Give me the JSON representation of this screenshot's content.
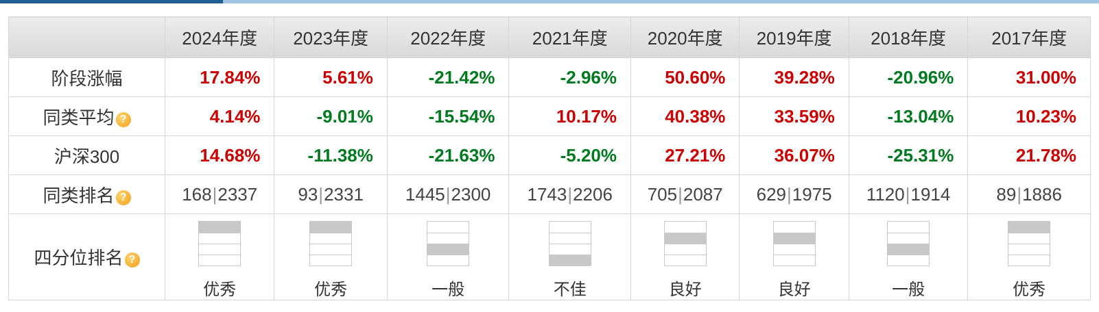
{
  "years": [
    "2024年度",
    "2023年度",
    "2022年度",
    "2021年度",
    "2020年度",
    "2019年度",
    "2018年度",
    "2017年度"
  ],
  "rows": {
    "stage_return": {
      "label": "阶段涨幅",
      "values": [
        "17.84%",
        "5.61%",
        "-21.42%",
        "-2.96%",
        "50.60%",
        "39.28%",
        "-20.96%",
        "31.00%"
      ]
    },
    "peer_average": {
      "label": "同类平均",
      "values": [
        "4.14%",
        "-9.01%",
        "-15.54%",
        "10.17%",
        "40.38%",
        "33.59%",
        "-13.04%",
        "10.23%"
      ]
    },
    "csi300": {
      "label": "沪深300",
      "values": [
        "14.68%",
        "-11.38%",
        "-21.63%",
        "-5.20%",
        "27.21%",
        "36.07%",
        "-25.31%",
        "21.78%"
      ]
    },
    "peer_rank": {
      "label": "同类排名",
      "ranks": [
        [
          "168",
          "2337"
        ],
        [
          "93",
          "2331"
        ],
        [
          "1445",
          "2300"
        ],
        [
          "1743",
          "2206"
        ],
        [
          "705",
          "2087"
        ],
        [
          "629",
          "1975"
        ],
        [
          "1120",
          "1914"
        ],
        [
          "89",
          "1886"
        ]
      ]
    },
    "quartile": {
      "label": "四分位排名",
      "items": [
        {
          "label": "优秀",
          "level": 1
        },
        {
          "label": "优秀",
          "level": 1
        },
        {
          "label": "一般",
          "level": 3
        },
        {
          "label": "不佳",
          "level": 4
        },
        {
          "label": "良好",
          "level": 2
        },
        {
          "label": "良好",
          "level": 2
        },
        {
          "label": "一般",
          "level": 3
        },
        {
          "label": "优秀",
          "level": 1
        }
      ]
    }
  },
  "help_icon": "question-circle-icon",
  "colors": {
    "positive": "#cc0000",
    "negative": "#007a1e",
    "header_bg": "#dcdcdc",
    "quartile_fill": "#c8c8c8",
    "tab_active": "#1f5f95",
    "tab_bar": "#9fc3e1"
  }
}
